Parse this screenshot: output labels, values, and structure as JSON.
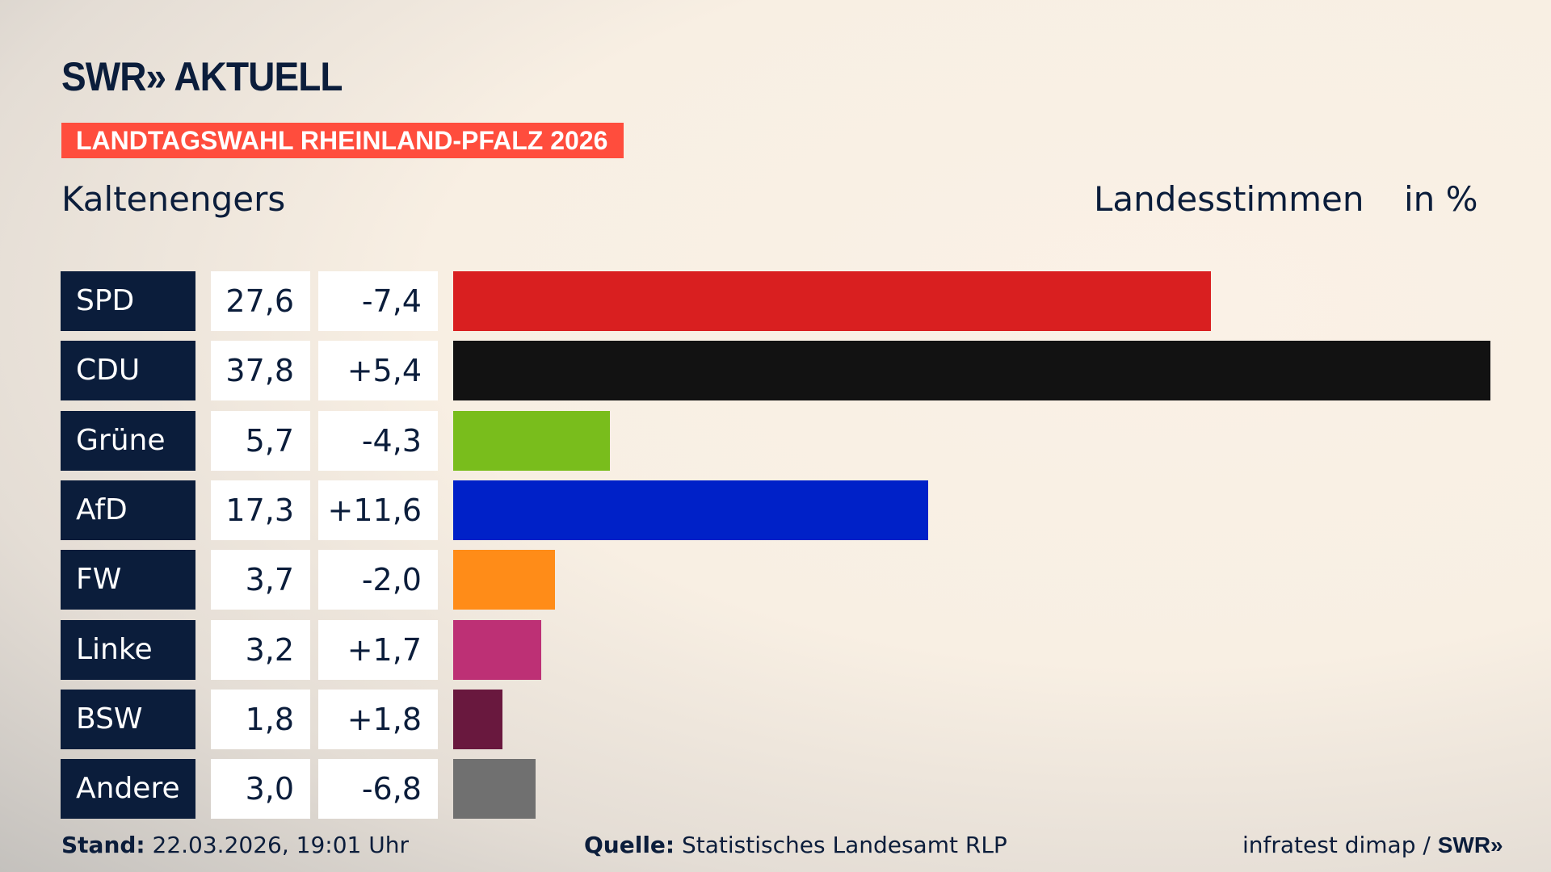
{
  "header": {
    "logo": "SWR» AKTUELL",
    "banner": "LANDTAGSWAHL RHEINLAND-PFALZ 2026",
    "location": "Kaltenengers",
    "measure": "Landesstimmen",
    "unit": "in %"
  },
  "chart_data": {
    "type": "bar",
    "orientation": "horizontal",
    "categories": [
      "SPD",
      "CDU",
      "Grüne",
      "AfD",
      "FW",
      "Linke",
      "BSW",
      "Andere"
    ],
    "values": [
      27.6,
      37.8,
      5.7,
      17.3,
      3.7,
      3.2,
      1.8,
      3.0
    ],
    "value_labels": [
      "27,6",
      "37,8",
      "5,7",
      "17,3",
      "3,7",
      "3,2",
      "1,8",
      "3,0"
    ],
    "diff_labels": [
      "-7,4",
      "+5,4",
      "-4,3",
      "+11,6",
      "-2,0",
      "+1,7",
      "+1,8",
      "-6,8"
    ],
    "diffs": [
      -7.4,
      5.4,
      -4.3,
      11.6,
      -2.0,
      1.7,
      1.8,
      -6.8
    ],
    "colors": [
      "#d91f20",
      "#121212",
      "#79bd1c",
      "#0021c8",
      "#ff8c18",
      "#bd3075",
      "#69183e",
      "#707070"
    ],
    "xlim": [
      0,
      37.8
    ]
  },
  "footer": {
    "stand_label": "Stand:",
    "stand_value": " 22.03.2026, 19:01 Uhr",
    "source_label": "Quelle:",
    "source_value": " Statistisches Landesamt RLP",
    "credit": "infratest dimap / ",
    "credit_logo": "SWR»"
  }
}
